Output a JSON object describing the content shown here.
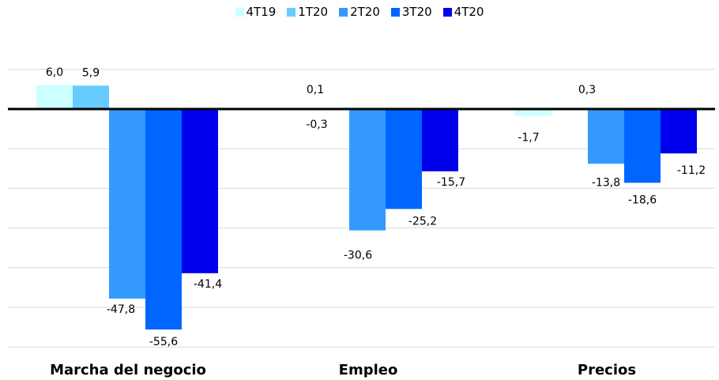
{
  "chart_data": {
    "type": "bar",
    "categories": [
      "Marcha del negocio",
      "Empleo",
      "Precios"
    ],
    "series": [
      {
        "name": "4T19",
        "color": "#ccffff",
        "values": [
          6.0,
          0.1,
          -1.7
        ]
      },
      {
        "name": "1T20",
        "color": "#66ccff",
        "values": [
          5.9,
          -0.3,
          0.3
        ]
      },
      {
        "name": "2T20",
        "color": "#3399ff",
        "values": [
          -47.8,
          -30.6,
          -13.8
        ]
      },
      {
        "name": "3T20",
        "color": "#0066ff",
        "values": [
          -55.6,
          -25.2,
          -18.6
        ]
      },
      {
        "name": "4T20",
        "color": "#0000ee",
        "values": [
          -41.4,
          -15.7,
          -11.2
        ]
      }
    ],
    "data_labels": [
      [
        "6,0",
        "0,1",
        "-1,7"
      ],
      [
        "5,9",
        "-0,3",
        "0,3"
      ],
      [
        "-47,8",
        "-30,6",
        "-13,8"
      ],
      [
        "-55,6",
        "-25,2",
        "-18,6"
      ],
      [
        "-41,4",
        "-15,7",
        "-11,2"
      ]
    ],
    "ylim": [
      -60,
      10
    ],
    "grid": true,
    "legend_position": "top"
  }
}
